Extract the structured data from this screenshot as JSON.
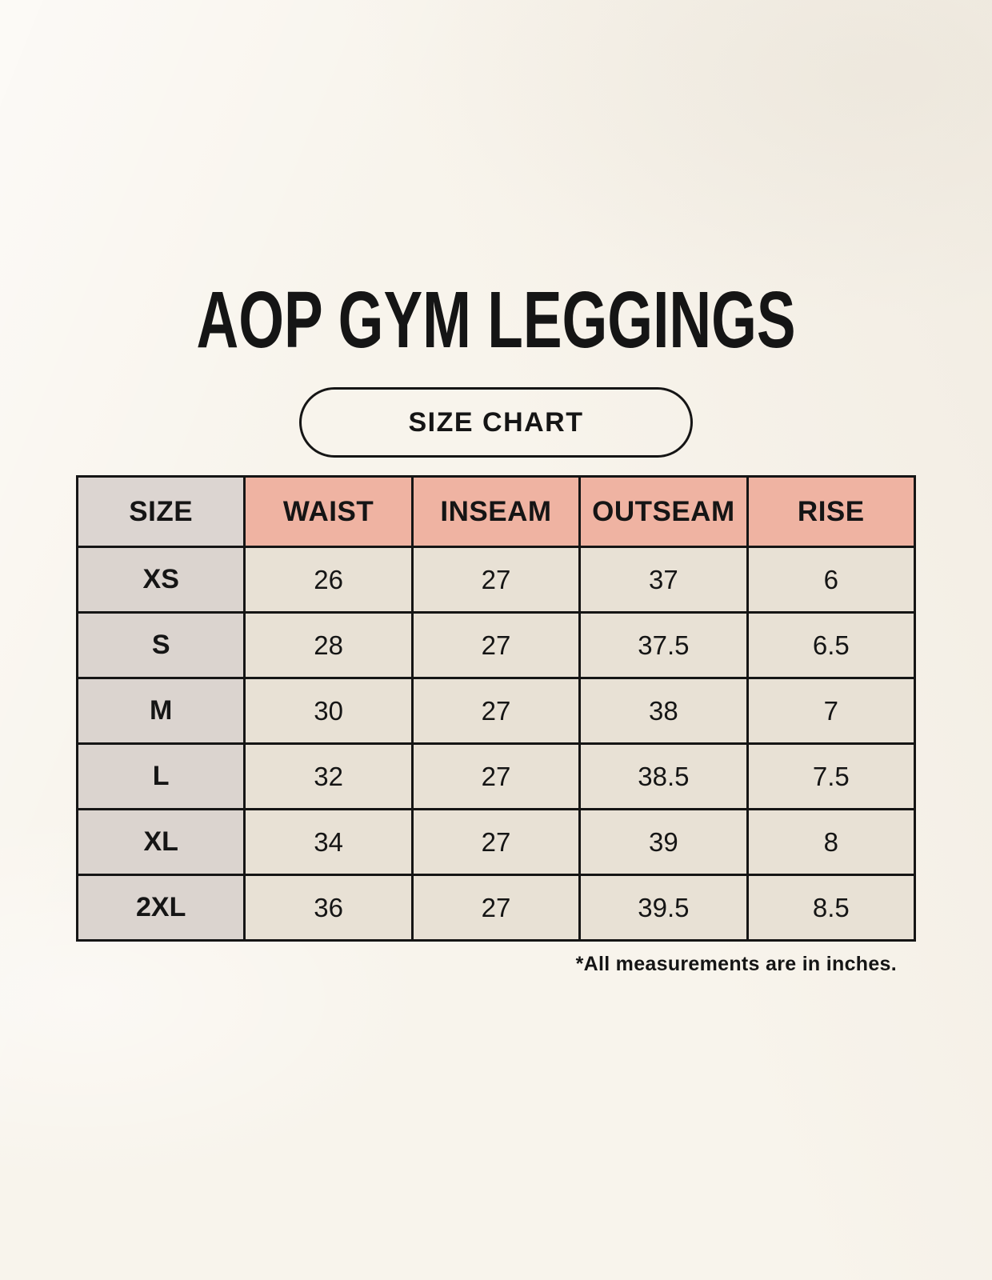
{
  "header": {
    "title": "AOP GYM LEGGINGS",
    "badge_label": "SIZE CHART"
  },
  "chart_data": {
    "type": "table",
    "title": "AOP GYM LEGGINGS",
    "columns": [
      "SIZE",
      "WAIST",
      "INSEAM",
      "OUTSEAM",
      "RISE"
    ],
    "rows": [
      [
        "XS",
        "26",
        "27",
        "37",
        "6"
      ],
      [
        "S",
        "28",
        "27",
        "37.5",
        "6.5"
      ],
      [
        "M",
        "30",
        "27",
        "38",
        "7"
      ],
      [
        "L",
        "32",
        "27",
        "38.5",
        "7.5"
      ],
      [
        "XL",
        "34",
        "27",
        "39",
        "8"
      ],
      [
        "2XL",
        "36",
        "27",
        "39.5",
        "8.5"
      ]
    ],
    "footnote": "*All measurements are in inches.",
    "units": "inches",
    "layout": "header row highlighted pink except first gray SIZE cell; first column gray; data cells cream; black 3px grid"
  },
  "colors": {
    "page_background": "#f8f4ec",
    "header_accent_pink": "#efb3a2",
    "size_column_gray": "#dbd4cf",
    "data_cell_cream": "#e8e1d5",
    "table_border": "#151515",
    "text": "#151515"
  }
}
